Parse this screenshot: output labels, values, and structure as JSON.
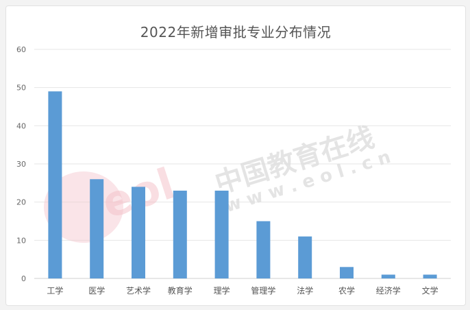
{
  "chart_data": {
    "type": "bar",
    "title": "2022年新增审批专业分布情况",
    "categories": [
      "工学",
      "医学",
      "艺术学",
      "教育学",
      "理学",
      "管理学",
      "法学",
      "农学",
      "经济学",
      "文学"
    ],
    "values": [
      49,
      26,
      24,
      23,
      23,
      15,
      11,
      3,
      1,
      1
    ],
    "ylim": [
      0,
      60
    ],
    "yticks": [
      0,
      10,
      20,
      30,
      40,
      50,
      60
    ],
    "grid": true,
    "bar_color": "#5b9bd5"
  },
  "watermark": {
    "logo_text": "eol",
    "text_cn": "中国教育在线",
    "text_url": "w w w . e o l . c n"
  }
}
